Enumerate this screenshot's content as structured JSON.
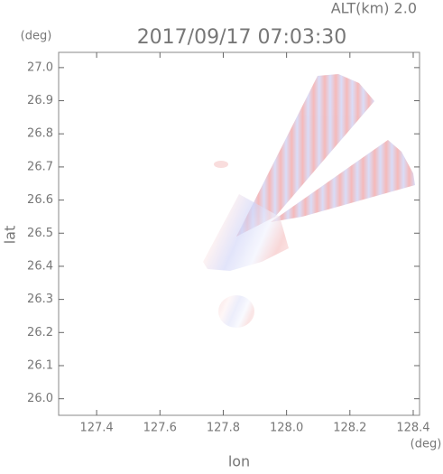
{
  "alt_label": "ALT(km) 2.0",
  "chart_data": {
    "type": "map",
    "title": "2017/09/17 07:03:30",
    "x_label": "lon",
    "y_label": "lat",
    "x_unit": "(deg)",
    "y_unit": "(deg)",
    "xlim": [
      127.28,
      128.42
    ],
    "ylim": [
      25.95,
      27.046
    ],
    "xticks": [
      127.4,
      127.6,
      127.8,
      {
        "value": 128,
        "label": "128.0"
      },
      128.2,
      128.4
    ],
    "yticks": [
      {
        "value": 26,
        "label": "26.0"
      },
      26.1,
      26.2,
      26.3,
      26.4,
      26.5,
      26.6,
      26.7,
      26.8,
      26.9,
      {
        "value": 27,
        "label": "27.0"
      }
    ]
  }
}
